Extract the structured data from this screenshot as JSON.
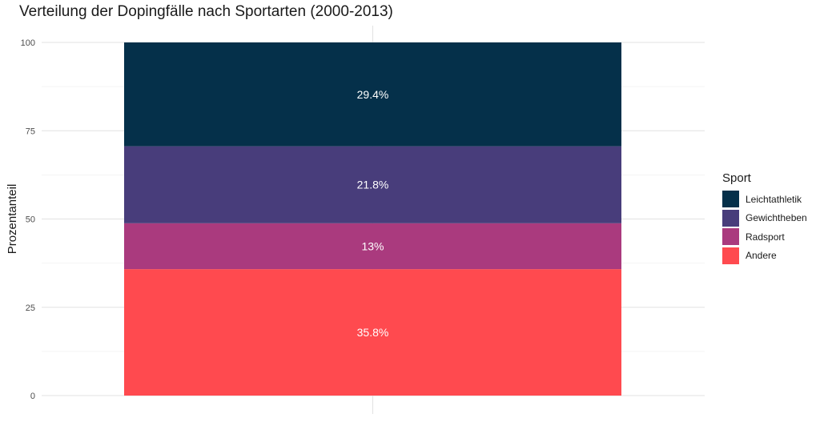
{
  "chart_data": {
    "type": "bar",
    "stacked": true,
    "title": "Verteilung der Dopingfälle nach Sportarten (2000-2013)",
    "xlabel": "",
    "ylabel": "Prozentanteil",
    "ylim": [
      0,
      100
    ],
    "yticks": [
      0,
      25,
      50,
      75,
      100
    ],
    "grid": true,
    "legend_title": "Sport",
    "legend_position": "right",
    "categories": [
      ""
    ],
    "series": [
      {
        "name": "Leichtathletik",
        "values": [
          29.4
        ],
        "label": "29.4%",
        "color": "#05304a"
      },
      {
        "name": "Gewichtheben",
        "values": [
          21.8
        ],
        "label": "21.8%",
        "color": "#483d7b"
      },
      {
        "name": "Radsport",
        "values": [
          13
        ],
        "label": "13%",
        "color": "#aa3a7e"
      },
      {
        "name": "Andere",
        "values": [
          35.8
        ],
        "label": "35.8%",
        "color": "#ff4a4f"
      }
    ]
  }
}
